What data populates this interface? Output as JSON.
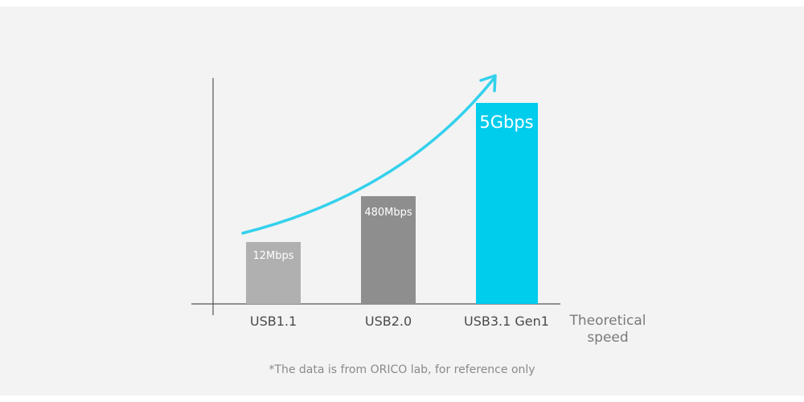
{
  "bars": [
    {
      "category": "USB1.1",
      "label": "12Mbps"
    },
    {
      "category": "USB2.0",
      "label": "480Mbps"
    },
    {
      "category": "USB3.1 Gen1",
      "label": "5Gbps"
    }
  ],
  "axis_label": "Theoretical speed",
  "footnote": "*The data is from ORICO lab, for reference only"
}
